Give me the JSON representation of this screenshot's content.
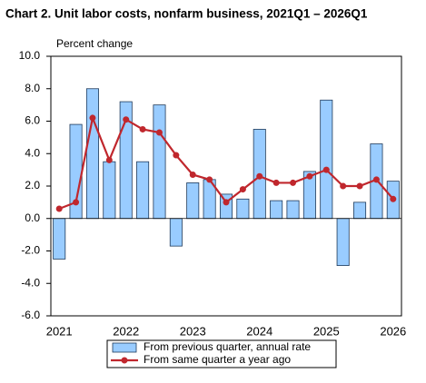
{
  "chart_data": {
    "type": "combo",
    "title": "Chart  2. Unit labor costs, nonfarm business, 2021Q1 – 2026Q1",
    "y_label": "Percent change",
    "categories": [
      "2021",
      null,
      null,
      null,
      "2022",
      null,
      null,
      null,
      "2023",
      null,
      null,
      null,
      "2024",
      null,
      null,
      null,
      "2025",
      null,
      null,
      null,
      "2026"
    ],
    "series": [
      {
        "name": "From previous quarter, annual rate",
        "type": "bar",
        "color": "#99ccff",
        "values": [
          -2.5,
          5.8,
          8.0,
          3.5,
          7.2,
          3.5,
          7.0,
          -1.7,
          2.2,
          2.4,
          1.5,
          1.2,
          5.5,
          1.1,
          1.1,
          2.9,
          7.3,
          -2.9,
          1.0,
          4.6,
          2.3
        ]
      },
      {
        "name": "From same quarter a year ago",
        "type": "line",
        "color": "#c0272d",
        "values": [
          0.6,
          1.0,
          6.2,
          3.6,
          6.1,
          5.5,
          5.3,
          3.9,
          2.7,
          2.4,
          1.0,
          1.8,
          2.6,
          2.2,
          2.2,
          2.6,
          3.0,
          2.0,
          2.0,
          2.4,
          1.2
        ]
      }
    ],
    "ylim": [
      -6,
      10
    ],
    "yticks": [
      {
        "value": -6,
        "label": "-6.0"
      },
      {
        "value": -4,
        "label": "-4.0"
      },
      {
        "value": -2,
        "label": "-2.0"
      },
      {
        "value": 0,
        "label": "0.0"
      },
      {
        "value": 2,
        "label": "2.0"
      },
      {
        "value": 4,
        "label": "4.0"
      },
      {
        "value": 6,
        "label": "6.0"
      },
      {
        "value": 8,
        "label": "8.0"
      },
      {
        "value": 10,
        "label": "10.0"
      }
    ],
    "grid": false
  }
}
